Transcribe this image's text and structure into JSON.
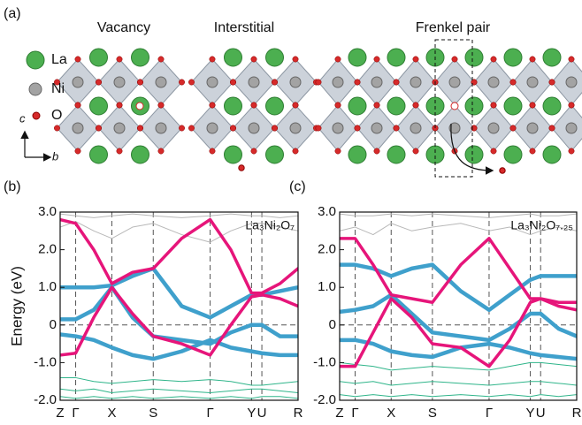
{
  "panel_a": {
    "label": "(a)",
    "titles": [
      "Vacancy",
      "Interstitial",
      "Frenkel pair"
    ],
    "legend": [
      {
        "name": "La",
        "color": "#4caf50"
      },
      {
        "name": "Ni",
        "color": "#a3a3a3"
      },
      {
        "name": "O",
        "color": "#d62a2a"
      }
    ],
    "axes": [
      "c",
      "b"
    ]
  },
  "chart_data": [
    {
      "type": "line",
      "panel": "(b)",
      "annotation": "La₃Ni₂O₇",
      "y_label": "Energy (eV)",
      "x": [
        0,
        0.3,
        0.65,
        1.0,
        1.4,
        1.8,
        2.35,
        2.9,
        3.3,
        3.7,
        3.9,
        4.25,
        4.6
      ],
      "xlim": [
        0,
        4.6
      ],
      "xticks": [
        {
          "value": 0,
          "label": "Z"
        },
        {
          "value": 0.3,
          "label": "Γ"
        },
        {
          "value": 1.0,
          "label": "X"
        },
        {
          "value": 1.8,
          "label": "S"
        },
        {
          "value": 2.9,
          "label": "Γ"
        },
        {
          "value": 3.7,
          "label": "Y"
        },
        {
          "value": 3.9,
          "label": "U"
        },
        {
          "value": 4.6,
          "label": "R"
        }
      ],
      "ylim": [
        -2,
        3
      ],
      "yticks": [
        {
          "value": -2,
          "label": "-2.0"
        },
        {
          "value": -1,
          "label": "-1.0"
        },
        {
          "value": 0,
          "label": "0"
        },
        {
          "value": 1,
          "label": "1.0"
        },
        {
          "value": 2,
          "label": "2.0"
        },
        {
          "value": 3,
          "label": "3.0"
        }
      ],
      "hline": 0,
      "series": [
        {
          "color": "#b8b8b8",
          "values": [
            2.95,
            2.9,
            2.85,
            2.9,
            2.95,
            2.9,
            2.85,
            2.9,
            2.95,
            2.9,
            2.9,
            2.85,
            2.9
          ]
        },
        {
          "color": "#b8b8b8",
          "values": [
            2.6,
            2.75,
            2.5,
            2.3,
            2.6,
            2.7,
            2.4,
            2.2,
            2.5,
            2.7,
            2.7,
            2.6,
            2.5
          ]
        },
        {
          "color": "#2fb58a",
          "values": [
            -1.4,
            -1.4,
            -1.5,
            -1.55,
            -1.5,
            -1.45,
            -1.5,
            -1.45,
            -1.5,
            -1.6,
            -1.6,
            -1.55,
            -1.5
          ]
        },
        {
          "color": "#2fb58a",
          "values": [
            -1.7,
            -1.75,
            -1.7,
            -1.8,
            -1.75,
            -1.7,
            -1.75,
            -1.8,
            -1.75,
            -1.7,
            -1.7,
            -1.75,
            -1.8
          ]
        },
        {
          "color": "#2fb58a",
          "values": [
            -1.9,
            -1.95,
            -1.9,
            -1.95,
            -1.9,
            -1.95,
            -1.9,
            -1.95,
            -1.9,
            -1.95,
            -1.9,
            -1.9,
            -1.95
          ]
        },
        {
          "color": "#3fa0cc",
          "values": [
            1.0,
            1.0,
            1.0,
            1.05,
            1.3,
            1.5,
            0.5,
            0.2,
            0.5,
            0.8,
            0.8,
            0.9,
            1.0
          ]
        },
        {
          "color": "#3fa0cc",
          "values": [
            0.15,
            0.15,
            0.4,
            1.0,
            0.2,
            -0.3,
            -0.4,
            -0.5,
            -0.2,
            0.0,
            0.0,
            -0.3,
            -0.3
          ]
        },
        {
          "color": "#3fa0cc",
          "values": [
            -0.25,
            -0.3,
            -0.4,
            -0.6,
            -0.8,
            -0.9,
            -0.7,
            -0.4,
            -0.6,
            -0.7,
            -0.75,
            -0.8,
            -0.8
          ]
        },
        {
          "color": "#e6157a",
          "values": [
            2.8,
            2.7,
            2.0,
            1.1,
            1.4,
            1.5,
            2.3,
            2.8,
            2.0,
            0.85,
            0.85,
            1.1,
            1.5
          ]
        },
        {
          "color": "#e6157a",
          "values": [
            -0.8,
            -0.75,
            0.2,
            1.0,
            0.3,
            -0.3,
            -0.5,
            -0.8,
            0.0,
            0.75,
            0.8,
            0.7,
            0.5
          ]
        }
      ]
    },
    {
      "type": "line",
      "panel": "(c)",
      "annotation": "La₃Ni₂O₇.₂₅",
      "x": [
        0,
        0.3,
        0.65,
        1.0,
        1.4,
        1.8,
        2.35,
        2.9,
        3.3,
        3.7,
        3.9,
        4.25,
        4.6
      ],
      "xlim": [
        0,
        4.6
      ],
      "xticks": [
        {
          "value": 0,
          "label": "Z"
        },
        {
          "value": 0.3,
          "label": "Γ"
        },
        {
          "value": 1.0,
          "label": "X"
        },
        {
          "value": 1.8,
          "label": "S"
        },
        {
          "value": 2.9,
          "label": "Γ"
        },
        {
          "value": 3.7,
          "label": "Y"
        },
        {
          "value": 3.9,
          "label": "U"
        },
        {
          "value": 4.6,
          "label": "R"
        }
      ],
      "ylim": [
        -2,
        3
      ],
      "yticks": [
        {
          "value": -2,
          "label": "-2.0"
        },
        {
          "value": -1,
          "label": "-1.0"
        },
        {
          "value": 0,
          "label": "0"
        },
        {
          "value": 1,
          "label": "1.0"
        },
        {
          "value": 2,
          "label": "2.0"
        },
        {
          "value": 3,
          "label": "3.0"
        }
      ],
      "hline": 0,
      "series": [
        {
          "color": "#b8b8b8",
          "values": [
            2.95,
            2.9,
            2.9,
            2.95,
            2.9,
            2.95,
            2.9,
            2.85,
            2.9,
            2.95,
            2.9,
            2.9,
            2.95
          ]
        },
        {
          "color": "#b8b8b8",
          "values": [
            2.5,
            2.6,
            2.4,
            2.7,
            2.5,
            2.6,
            2.7,
            2.5,
            2.6,
            2.4,
            2.5,
            2.6,
            2.5
          ]
        },
        {
          "color": "#2fb58a",
          "values": [
            -1.0,
            -1.05,
            -1.1,
            -1.2,
            -1.15,
            -1.1,
            -1.15,
            -1.2,
            -1.1,
            -1.0,
            -1.0,
            -1.05,
            -1.1
          ]
        },
        {
          "color": "#2fb58a",
          "values": [
            -1.5,
            -1.55,
            -1.5,
            -1.6,
            -1.55,
            -1.5,
            -1.55,
            -1.6,
            -1.55,
            -1.5,
            -1.5,
            -1.55,
            -1.6
          ]
        },
        {
          "color": "#2fb58a",
          "values": [
            -1.85,
            -1.9,
            -1.85,
            -1.9,
            -1.85,
            -1.9,
            -1.85,
            -1.9,
            -1.85,
            -1.9,
            -1.85,
            -1.9,
            -1.85
          ]
        },
        {
          "color": "#3fa0cc",
          "values": [
            1.6,
            1.6,
            1.5,
            1.3,
            1.5,
            1.6,
            0.9,
            0.4,
            0.8,
            1.2,
            1.3,
            1.3,
            1.3
          ]
        },
        {
          "color": "#3fa0cc",
          "values": [
            0.35,
            0.4,
            0.5,
            0.8,
            0.3,
            -0.2,
            -0.3,
            -0.4,
            -0.1,
            0.3,
            0.3,
            -0.1,
            -0.3
          ]
        },
        {
          "color": "#3fa0cc",
          "values": [
            -0.4,
            -0.4,
            -0.5,
            -0.7,
            -0.8,
            -0.85,
            -0.6,
            -0.5,
            -0.6,
            -0.75,
            -0.8,
            -0.85,
            -0.9
          ]
        },
        {
          "color": "#e6157a",
          "values": [
            2.3,
            2.3,
            1.6,
            0.8,
            0.7,
            0.6,
            1.6,
            2.3,
            1.5,
            0.7,
            0.7,
            0.6,
            0.6
          ]
        },
        {
          "color": "#e6157a",
          "values": [
            -1.1,
            -1.1,
            -0.2,
            0.7,
            0.2,
            -0.5,
            -0.6,
            -1.1,
            -0.4,
            0.6,
            0.7,
            0.5,
            0.4
          ]
        }
      ]
    }
  ]
}
